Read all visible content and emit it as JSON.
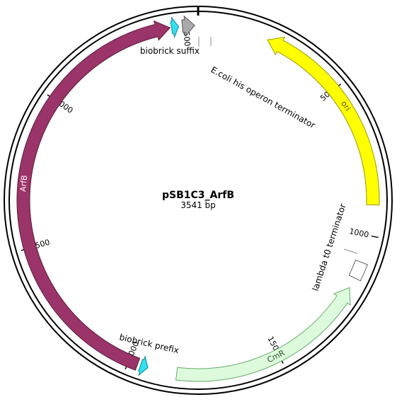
{
  "plasmid": {
    "name": "pSB1C3_ArfB",
    "length_label": "3541 bp",
    "length_bp": 3541
  },
  "ticks": [
    {
      "bp": 500,
      "label": "500"
    },
    {
      "bp": 1000,
      "label": "1000"
    },
    {
      "bp": 1500,
      "label": "1500"
    },
    {
      "bp": 2000,
      "label": "2000"
    },
    {
      "bp": 2500,
      "label": "2500"
    },
    {
      "bp": 3000,
      "label": "3000"
    },
    {
      "bp": 3500,
      "label": "3500"
    }
  ],
  "features": [
    {
      "id": "ori",
      "label": "ori",
      "start": 230,
      "end": 900,
      "direction": -1,
      "color": "#ffff00",
      "stroke": "#999900",
      "text_color": "#555500",
      "show_inner": true
    },
    {
      "id": "cmr",
      "label": "CmR",
      "start": 1180,
      "end": 1840,
      "direction": -1,
      "color": "#ddfadd",
      "stroke": "#66aa66",
      "text_color": "#225522",
      "show_inner": true
    },
    {
      "id": "lambda",
      "label": "lambda t0 terminator",
      "start": 1090,
      "end": 1145,
      "direction": 0,
      "color": "#ffffff",
      "stroke": "#666666",
      "show_inner": false
    },
    {
      "id": "prefix",
      "label": "biobrick prefix",
      "start": 1935,
      "end": 1960,
      "direction": -1,
      "color": "#33e0f0",
      "stroke": "#118899",
      "show_inner": false
    },
    {
      "id": "arfb",
      "label": "ArfB",
      "start": 1970,
      "end": 3450,
      "direction": 1,
      "color": "#9b3469",
      "stroke": "#5a1d3e",
      "text_color": "#ffffff",
      "show_inner": true
    },
    {
      "id": "suffix",
      "label": "biobrick suffix",
      "start": 3455,
      "end": 3478,
      "direction": 1,
      "color": "#33e0f0",
      "stroke": "#118899",
      "show_inner": false
    },
    {
      "id": "terminator",
      "label": "E.coli his operon terminator",
      "start": 3490,
      "end": 3530,
      "direction": 1,
      "color": "#a9a9a9",
      "stroke": "#555555",
      "show_inner": false
    }
  ],
  "outer_labels": [
    {
      "feature": "suffix",
      "text": "biobrick suffix"
    },
    {
      "feature": "terminator",
      "text": "E.coli his operon terminator"
    },
    {
      "feature": "lambda",
      "text": "lambda t0 terminator"
    },
    {
      "feature": "prefix",
      "text": "biobrick prefix"
    }
  ]
}
